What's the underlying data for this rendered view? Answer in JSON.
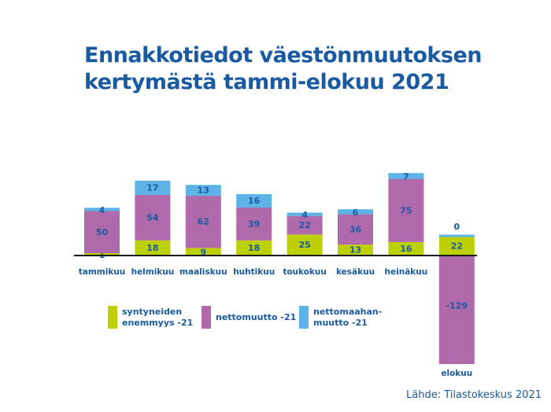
{
  "title": {
    "line1": "Ennakkotiedot väestönmuutoksen",
    "line2": "kertymästä tammi-elokuu 2021"
  },
  "source": "Lähde: Tilastokeskus 2021",
  "colors": {
    "births": "#bccf00",
    "net_migration": "#b06aab",
    "net_immigration": "#5db3e6",
    "text": "#1a5aa3",
    "axis": "#1a1a1a"
  },
  "chart_data": {
    "type": "bar",
    "stacked": true,
    "categories": [
      "tammikuu",
      "helmikuu",
      "maaliskuu",
      "huhtikuu",
      "toukokuu",
      "kesäkuu",
      "heinäkuu",
      "elokuu"
    ],
    "series": [
      {
        "name": "syntyneiden\nenemmyys -21",
        "values": [
          1,
          18,
          9,
          18,
          25,
          13,
          16,
          22
        ]
      },
      {
        "name": "nettomuutto -21",
        "values": [
          50,
          54,
          62,
          39,
          22,
          36,
          75,
          -129
        ]
      },
      {
        "name": "nettomaahan-\nmuutto -21",
        "values": [
          4,
          17,
          13,
          16,
          4,
          6,
          7,
          0
        ]
      }
    ],
    "title": "Ennakkotiedot väestönmuutoksen kertymästä tammi-elokuu 2021",
    "xlabel": "",
    "ylabel": "",
    "legend_position": "bottom-left",
    "grid": false
  }
}
